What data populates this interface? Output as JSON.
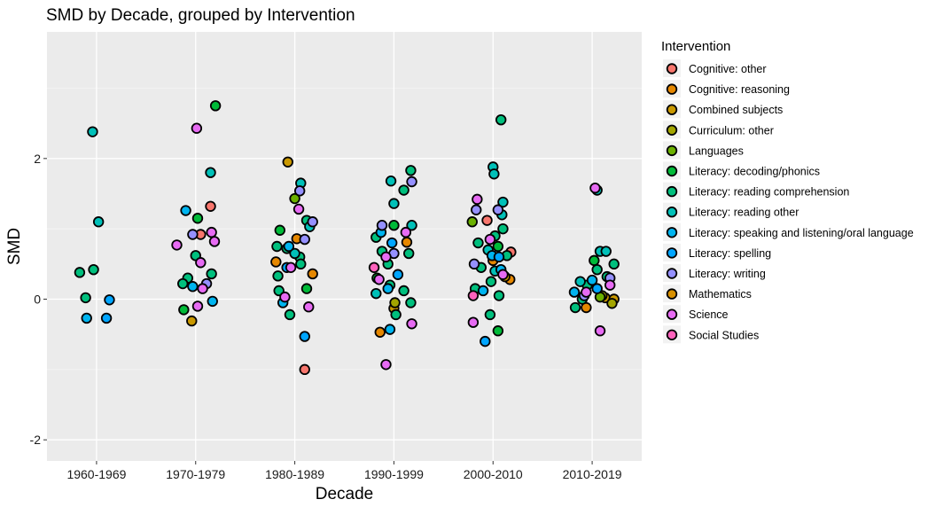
{
  "chart_data": {
    "type": "scatter",
    "title": "SMD by Decade, grouped by Intervention",
    "xlabel": "Decade",
    "ylabel": "SMD",
    "categories": [
      "1960-1969",
      "1970-1979",
      "1980-1989",
      "1990-1999",
      "2000-2010",
      "2010-2019"
    ],
    "ylim": [
      -2.3,
      3.8
    ],
    "yticks": [
      -2,
      0,
      2
    ],
    "grid": true,
    "legend_title": "Intervention",
    "legend_position": "right",
    "series": [
      {
        "name": "Cognitive: other",
        "color": "#F8766D",
        "points": [
          {
            "x": "1970-1979",
            "y": 0.92,
            "j": 0.05
          },
          {
            "x": "1970-1979",
            "y": 1.32,
            "j": 0.15
          },
          {
            "x": "1980-1989",
            "y": -1.0,
            "j": 0.1
          },
          {
            "x": "2000-2010",
            "y": 0.67,
            "j": 0.18
          },
          {
            "x": "2000-2010",
            "y": 1.12,
            "j": -0.06
          }
        ]
      },
      {
        "name": "Cognitive: reasoning",
        "color": "#E58700",
        "points": [
          {
            "x": "1980-1989",
            "y": 0.53,
            "j": -0.19
          },
          {
            "x": "1980-1989",
            "y": 0.36,
            "j": 0.18
          },
          {
            "x": "1980-1989",
            "y": 0.86,
            "j": 0.02
          },
          {
            "x": "1990-1999",
            "y": 0.81,
            "j": 0.13
          },
          {
            "x": "1990-1999",
            "y": -0.47,
            "j": -0.14
          },
          {
            "x": "2000-2010",
            "y": 0.28,
            "j": 0.17
          },
          {
            "x": "2000-2010",
            "y": 0.55,
            "j": 0.0
          },
          {
            "x": "2010-2019",
            "y": -0.12,
            "j": -0.06
          }
        ]
      },
      {
        "name": "Combined subjects",
        "color": "#C99800",
        "points": [
          {
            "x": "1970-1979",
            "y": -0.31,
            "j": -0.04
          },
          {
            "x": "1980-1989",
            "y": 1.95,
            "j": -0.07
          },
          {
            "x": "1990-1999",
            "y": -0.13,
            "j": 0.0
          },
          {
            "x": "2000-2010",
            "y": 0.32,
            "j": 0.12
          },
          {
            "x": "2010-2019",
            "y": 0.02,
            "j": 0.13
          },
          {
            "x": "2010-2019",
            "y": 0.0,
            "j": 0.22
          }
        ]
      },
      {
        "name": "Curriculum: other",
        "color": "#A3A500",
        "points": [
          {
            "x": "1990-1999",
            "y": -0.05,
            "j": 0.01
          },
          {
            "x": "2010-2019",
            "y": 0.05,
            "j": 0.1
          },
          {
            "x": "2010-2019",
            "y": -0.06,
            "j": 0.2
          }
        ]
      },
      {
        "name": "Languages",
        "color": "#6BB100",
        "points": [
          {
            "x": "1980-1989",
            "y": 1.43,
            "j": 0.0
          },
          {
            "x": "2000-2010",
            "y": 1.1,
            "j": -0.21
          },
          {
            "x": "2010-2019",
            "y": 0.03,
            "j": 0.08
          }
        ]
      },
      {
        "name": "Literacy: decoding/phonics",
        "color": "#00BA38",
        "points": [
          {
            "x": "1970-1979",
            "y": 2.75,
            "j": 0.2
          },
          {
            "x": "1970-1979",
            "y": 1.15,
            "j": 0.02
          },
          {
            "x": "1970-1979",
            "y": -0.15,
            "j": -0.12
          },
          {
            "x": "1980-1989",
            "y": 0.98,
            "j": -0.15
          },
          {
            "x": "1980-1989",
            "y": 0.15,
            "j": 0.12
          },
          {
            "x": "1990-1999",
            "y": 1.05,
            "j": 0.0
          },
          {
            "x": "1990-1999",
            "y": 0.3,
            "j": -0.17
          },
          {
            "x": "2000-2010",
            "y": 0.75,
            "j": 0.05
          },
          {
            "x": "2000-2010",
            "y": -0.45,
            "j": 0.05
          },
          {
            "x": "2010-2019",
            "y": 0.55,
            "j": 0.02
          }
        ]
      },
      {
        "name": "Literacy: reading comprehension",
        "color": "#00BF7D",
        "points": [
          {
            "x": "1960-1969",
            "y": 0.38,
            "j": -0.17
          },
          {
            "x": "1960-1969",
            "y": 0.42,
            "j": -0.03
          },
          {
            "x": "1960-1969",
            "y": 0.02,
            "j": -0.11
          },
          {
            "x": "1970-1979",
            "y": 0.3,
            "j": -0.08
          },
          {
            "x": "1970-1979",
            "y": 0.62,
            "j": 0.0
          },
          {
            "x": "1970-1979",
            "y": 0.36,
            "j": 0.16
          },
          {
            "x": "1970-1979",
            "y": 0.22,
            "j": -0.13
          },
          {
            "x": "1980-1989",
            "y": 0.75,
            "j": -0.18
          },
          {
            "x": "1980-1989",
            "y": 0.72,
            "j": -0.08
          },
          {
            "x": "1980-1989",
            "y": 0.33,
            "j": -0.17
          },
          {
            "x": "1980-1989",
            "y": 0.12,
            "j": -0.16
          },
          {
            "x": "1980-1989",
            "y": 0.6,
            "j": 0.05
          },
          {
            "x": "1980-1989",
            "y": 1.12,
            "j": 0.12
          },
          {
            "x": "1980-1989",
            "y": 0.5,
            "j": 0.06
          },
          {
            "x": "1980-1989",
            "y": -0.22,
            "j": -0.05
          },
          {
            "x": "1990-1999",
            "y": 0.88,
            "j": -0.18
          },
          {
            "x": "1990-1999",
            "y": 1.55,
            "j": 0.1
          },
          {
            "x": "1990-1999",
            "y": 1.83,
            "j": 0.17
          },
          {
            "x": "1990-1999",
            "y": 0.12,
            "j": 0.1
          },
          {
            "x": "1990-1999",
            "y": -0.22,
            "j": 0.02
          },
          {
            "x": "1990-1999",
            "y": 0.68,
            "j": -0.12
          },
          {
            "x": "1990-1999",
            "y": 0.2,
            "j": -0.04
          },
          {
            "x": "1990-1999",
            "y": -0.05,
            "j": 0.17
          },
          {
            "x": "1990-1999",
            "y": 0.5,
            "j": -0.06
          },
          {
            "x": "1990-1999",
            "y": 0.65,
            "j": 0.15
          },
          {
            "x": "2000-2010",
            "y": 2.55,
            "j": 0.08
          },
          {
            "x": "2000-2010",
            "y": 0.8,
            "j": -0.15
          },
          {
            "x": "2000-2010",
            "y": 0.45,
            "j": -0.12
          },
          {
            "x": "2000-2010",
            "y": 0.25,
            "j": -0.02
          },
          {
            "x": "2000-2010",
            "y": 1.0,
            "j": 0.1
          },
          {
            "x": "2000-2010",
            "y": 0.15,
            "j": -0.18
          },
          {
            "x": "2000-2010",
            "y": -0.22,
            "j": -0.03
          },
          {
            "x": "2000-2010",
            "y": 0.62,
            "j": 0.14
          },
          {
            "x": "2000-2010",
            "y": 0.9,
            "j": 0.02
          },
          {
            "x": "2000-2010",
            "y": 0.05,
            "j": 0.06
          },
          {
            "x": "2010-2019",
            "y": 0.5,
            "j": 0.22
          },
          {
            "x": "2010-2019",
            "y": 0.32,
            "j": 0.15
          },
          {
            "x": "2010-2019",
            "y": 0.2,
            "j": -0.05
          },
          {
            "x": "2010-2019",
            "y": -0.12,
            "j": -0.17
          },
          {
            "x": "2010-2019",
            "y": 0.0,
            "j": -0.1
          },
          {
            "x": "2010-2019",
            "y": 0.42,
            "j": 0.05
          }
        ]
      },
      {
        "name": "Literacy: reading other",
        "color": "#00C0B8",
        "points": [
          {
            "x": "1960-1969",
            "y": 2.38,
            "j": -0.04
          },
          {
            "x": "1960-1969",
            "y": 1.1,
            "j": 0.02
          },
          {
            "x": "1970-1979",
            "y": 1.8,
            "j": 0.15
          },
          {
            "x": "1980-1989",
            "y": 1.65,
            "j": 0.06
          },
          {
            "x": "1980-1989",
            "y": 0.65,
            "j": 0.0
          },
          {
            "x": "1980-1989",
            "y": 1.03,
            "j": 0.15
          },
          {
            "x": "1990-1999",
            "y": 1.68,
            "j": -0.03
          },
          {
            "x": "1990-1999",
            "y": 1.36,
            "j": 0.0
          },
          {
            "x": "1990-1999",
            "y": 1.05,
            "j": 0.18
          },
          {
            "x": "1990-1999",
            "y": 0.08,
            "j": -0.18
          },
          {
            "x": "2000-2010",
            "y": 1.88,
            "j": 0.0
          },
          {
            "x": "2000-2010",
            "y": 1.78,
            "j": 0.01
          },
          {
            "x": "2000-2010",
            "y": 1.38,
            "j": 0.1
          },
          {
            "x": "2000-2010",
            "y": 1.2,
            "j": 0.09
          },
          {
            "x": "2000-2010",
            "y": 0.4,
            "j": 0.02
          },
          {
            "x": "2000-2010",
            "y": 0.7,
            "j": -0.05
          },
          {
            "x": "2010-2019",
            "y": 0.68,
            "j": 0.08
          },
          {
            "x": "2010-2019",
            "y": 0.68,
            "j": 0.14
          },
          {
            "x": "2010-2019",
            "y": 1.55,
            "j": 0.05
          },
          {
            "x": "2010-2019",
            "y": 0.25,
            "j": -0.12
          }
        ]
      },
      {
        "name": "Literacy: speaking and listening/oral language",
        "color": "#00B4EF",
        "points": [
          {
            "x": "1960-1969",
            "y": -0.27,
            "j": -0.1
          },
          {
            "x": "1970-1979",
            "y": 1.26,
            "j": -0.1
          },
          {
            "x": "1970-1979",
            "y": 0.18,
            "j": -0.03
          },
          {
            "x": "1970-1979",
            "y": -0.03,
            "j": 0.17
          },
          {
            "x": "1980-1989",
            "y": -0.05,
            "j": -0.12
          },
          {
            "x": "1980-1989",
            "y": 0.75,
            "j": -0.06
          },
          {
            "x": "1990-1999",
            "y": 0.95,
            "j": -0.13
          },
          {
            "x": "1990-1999",
            "y": 0.15,
            "j": -0.06
          },
          {
            "x": "1990-1999",
            "y": -0.43,
            "j": -0.04
          },
          {
            "x": "2000-2010",
            "y": 0.62,
            "j": -0.01
          },
          {
            "x": "2000-2010",
            "y": 0.42,
            "j": 0.08
          },
          {
            "x": "2000-2010",
            "y": 0.12,
            "j": -0.1
          },
          {
            "x": "2010-2019",
            "y": 0.27,
            "j": 0.0
          },
          {
            "x": "2010-2019",
            "y": 0.1,
            "j": -0.18
          }
        ]
      },
      {
        "name": "Literacy: spelling",
        "color": "#00A5FF",
        "points": [
          {
            "x": "1960-1969",
            "y": -0.27,
            "j": 0.1
          },
          {
            "x": "1960-1969",
            "y": -0.01,
            "j": 0.13
          },
          {
            "x": "1980-1989",
            "y": 0.45,
            "j": -0.08
          },
          {
            "x": "1980-1989",
            "y": -0.53,
            "j": 0.1
          },
          {
            "x": "1990-1999",
            "y": 0.8,
            "j": -0.02
          },
          {
            "x": "1990-1999",
            "y": 0.35,
            "j": 0.04
          },
          {
            "x": "2000-2010",
            "y": -0.6,
            "j": -0.08
          },
          {
            "x": "2000-2010",
            "y": 0.6,
            "j": 0.06
          },
          {
            "x": "2010-2019",
            "y": 0.15,
            "j": 0.05
          }
        ]
      },
      {
        "name": "Literacy: writing",
        "color": "#9590FF",
        "points": [
          {
            "x": "1970-1979",
            "y": 0.92,
            "j": -0.03
          },
          {
            "x": "1970-1979",
            "y": 0.22,
            "j": 0.11
          },
          {
            "x": "1980-1989",
            "y": 1.54,
            "j": 0.05
          },
          {
            "x": "1980-1989",
            "y": 1.1,
            "j": 0.18
          },
          {
            "x": "1980-1989",
            "y": 0.85,
            "j": 0.1
          },
          {
            "x": "1990-1999",
            "y": 1.67,
            "j": 0.18
          },
          {
            "x": "1990-1999",
            "y": 1.05,
            "j": -0.12
          },
          {
            "x": "1990-1999",
            "y": 0.65,
            "j": 0.0
          },
          {
            "x": "2000-2010",
            "y": 1.27,
            "j": -0.17
          },
          {
            "x": "2000-2010",
            "y": 1.27,
            "j": 0.05
          },
          {
            "x": "2000-2010",
            "y": 0.5,
            "j": -0.19
          },
          {
            "x": "2010-2019",
            "y": 0.05,
            "j": -0.08
          },
          {
            "x": "2010-2019",
            "y": 0.3,
            "j": 0.18
          }
        ]
      },
      {
        "name": "Mathematics",
        "color": "#D89000",
        "points": []
      },
      {
        "name": "Science",
        "color": "#E76BF3",
        "points": [
          {
            "x": "1970-1979",
            "y": 2.43,
            "j": 0.01
          },
          {
            "x": "1970-1979",
            "y": 0.95,
            "j": 0.16
          },
          {
            "x": "1970-1979",
            "y": 0.82,
            "j": 0.19
          },
          {
            "x": "1970-1979",
            "y": 0.77,
            "j": -0.19
          },
          {
            "x": "1970-1979",
            "y": 0.52,
            "j": 0.05
          },
          {
            "x": "1970-1979",
            "y": 0.15,
            "j": 0.07
          },
          {
            "x": "1970-1979",
            "y": -0.1,
            "j": 0.02
          },
          {
            "x": "1980-1989",
            "y": 1.28,
            "j": 0.04
          },
          {
            "x": "1980-1989",
            "y": 0.45,
            "j": -0.04
          },
          {
            "x": "1980-1989",
            "y": 0.03,
            "j": -0.1
          },
          {
            "x": "1980-1989",
            "y": -0.11,
            "j": 0.14
          },
          {
            "x": "1990-1999",
            "y": 0.95,
            "j": 0.12
          },
          {
            "x": "1990-1999",
            "y": 0.6,
            "j": -0.08
          },
          {
            "x": "1990-1999",
            "y": 0.28,
            "j": -0.15
          },
          {
            "x": "1990-1999",
            "y": -0.93,
            "j": -0.08
          },
          {
            "x": "1990-1999",
            "y": -0.35,
            "j": 0.18
          },
          {
            "x": "2000-2010",
            "y": 1.42,
            "j": -0.16
          },
          {
            "x": "2000-2010",
            "y": 0.85,
            "j": -0.03
          },
          {
            "x": "2000-2010",
            "y": 0.35,
            "j": 0.1
          },
          {
            "x": "2000-2010",
            "y": -0.33,
            "j": -0.2
          },
          {
            "x": "2010-2019",
            "y": 1.58,
            "j": 0.03
          },
          {
            "x": "2010-2019",
            "y": 0.2,
            "j": 0.18
          },
          {
            "x": "2010-2019",
            "y": -0.45,
            "j": 0.08
          },
          {
            "x": "2010-2019",
            "y": 0.1,
            "j": -0.06
          }
        ]
      },
      {
        "name": "Social Studies",
        "color": "#FF62BC",
        "points": [
          {
            "x": "1990-1999",
            "y": 0.45,
            "j": -0.2
          },
          {
            "x": "2000-2010",
            "y": 0.05,
            "j": -0.2
          }
        ]
      }
    ]
  }
}
